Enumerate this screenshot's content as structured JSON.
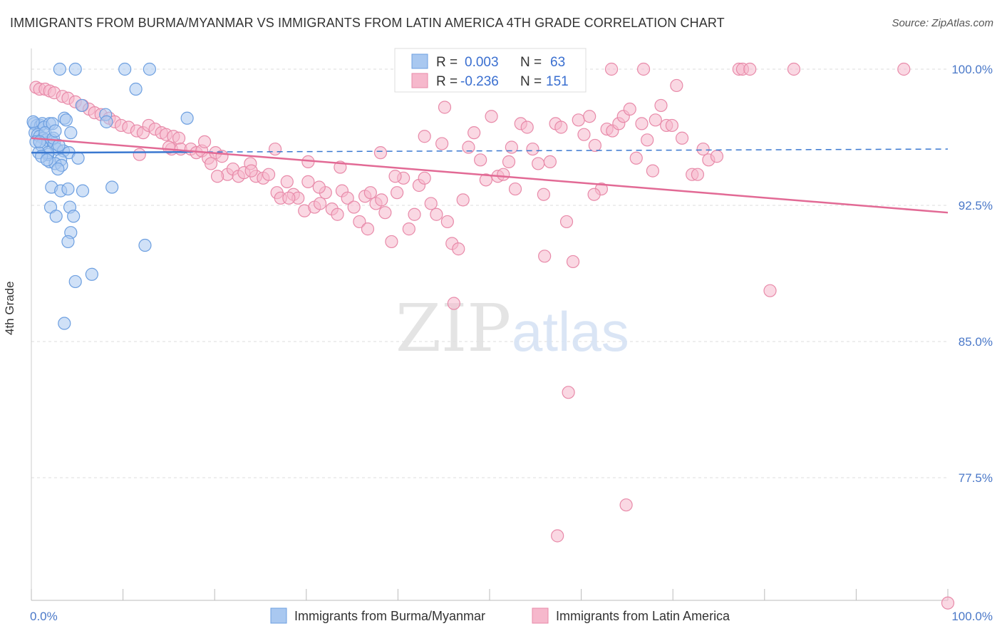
{
  "title": "IMMIGRANTS FROM BURMA/MYANMAR VS IMMIGRANTS FROM LATIN AMERICA 4TH GRADE CORRELATION CHART",
  "source": "Source: ZipAtlas.com",
  "watermark": {
    "zip": "ZIP",
    "atlas": "atlas"
  },
  "colors": {
    "blue_fill": "#a9c8f0",
    "blue_stroke": "#6d9fe0",
    "blue_line": "#3a78d0",
    "pink_fill": "#f6b8cc",
    "pink_stroke": "#e88aa9",
    "pink_line": "#e26a95",
    "tick_text": "#4a78c8",
    "grid": "#dddddd"
  },
  "legend_top": {
    "rows": [
      {
        "r_label": "R =",
        "r_value": "0.003",
        "n_label": "N =",
        "n_value": "63",
        "series": "blue"
      },
      {
        "r_label": "R =",
        "r_value": "-0.236",
        "n_label": "N =",
        "n_value": "151",
        "series": "pink"
      }
    ]
  },
  "chart_data": {
    "type": "scatter",
    "title": "IMMIGRANTS FROM BURMA/MYANMAR VS IMMIGRANTS FROM LATIN AMERICA 4TH GRADE CORRELATION CHART",
    "xlabel": "",
    "ylabel": "4th Grade",
    "xlim": [
      0,
      100
    ],
    "ylim": [
      70.5,
      101
    ],
    "x_ticks": [
      "0.0%",
      "100.0%"
    ],
    "y_ticks": [
      {
        "value": 100.0,
        "label": "100.0%"
      },
      {
        "value": 92.5,
        "label": "92.5%"
      },
      {
        "value": 85.0,
        "label": "85.0%"
      },
      {
        "value": 77.5,
        "label": "77.5%"
      }
    ],
    "grid": true,
    "legend_position": "bottom",
    "series": [
      {
        "name": "Immigrants from Burma/Myanmar",
        "color": "blue",
        "trend": {
          "x0": 0,
          "y0": 95.4,
          "x1": 100,
          "y1": 95.6,
          "solid_until": 17
        },
        "points": [
          [
            3.1,
            100
          ],
          [
            4.8,
            100
          ],
          [
            10.2,
            100
          ],
          [
            12.9,
            100
          ],
          [
            11.4,
            98.9
          ],
          [
            5.5,
            98.0
          ],
          [
            8.1,
            97.5
          ],
          [
            17.0,
            97.3
          ],
          [
            0.3,
            97.0
          ],
          [
            0.6,
            96.9
          ],
          [
            1.0,
            96.9
          ],
          [
            1.2,
            97.0
          ],
          [
            1.4,
            96.8
          ],
          [
            2.0,
            97.0
          ],
          [
            3.6,
            97.3
          ],
          [
            3.8,
            97.2
          ],
          [
            0.4,
            96.5
          ],
          [
            0.7,
            96.4
          ],
          [
            0.9,
            96.3
          ],
          [
            1.3,
            96.2
          ],
          [
            1.6,
            96.1
          ],
          [
            2.2,
            96.1
          ],
          [
            2.5,
            95.9
          ],
          [
            4.3,
            96.5
          ],
          [
            1.1,
            95.8
          ],
          [
            2.8,
            95.6
          ],
          [
            3.5,
            95.5
          ],
          [
            4.1,
            95.4
          ],
          [
            5.1,
            95.1
          ],
          [
            3.2,
            95.0
          ],
          [
            2.0,
            94.9
          ],
          [
            1.8,
            95.3
          ],
          [
            1.8,
            95.4
          ],
          [
            0.8,
            95.4
          ],
          [
            2.6,
            94.8
          ],
          [
            3.3,
            94.7
          ],
          [
            2.9,
            94.5
          ],
          [
            0.5,
            96.0
          ],
          [
            1.5,
            96.5
          ],
          [
            2.3,
            97.0
          ],
          [
            8.2,
            97.1
          ],
          [
            1.1,
            95.2
          ],
          [
            2.2,
            93.5
          ],
          [
            3.2,
            93.3
          ],
          [
            4.0,
            93.4
          ],
          [
            5.6,
            93.3
          ],
          [
            8.8,
            93.5
          ],
          [
            2.1,
            92.4
          ],
          [
            4.2,
            92.4
          ],
          [
            2.7,
            91.9
          ],
          [
            4.6,
            91.9
          ],
          [
            4.3,
            91.0
          ],
          [
            4.0,
            90.5
          ],
          [
            12.4,
            90.3
          ],
          [
            6.6,
            88.7
          ],
          [
            4.8,
            88.3
          ],
          [
            3.6,
            86.0
          ],
          [
            0.2,
            97.1
          ],
          [
            0.9,
            96.0
          ],
          [
            2.4,
            96.2
          ],
          [
            3.0,
            95.8
          ],
          [
            1.7,
            95.0
          ],
          [
            2.6,
            96.6
          ]
        ]
      },
      {
        "name": "Immigrants from Latin America",
        "color": "pink",
        "trend": {
          "x0": 0,
          "y0": 96.2,
          "x1": 100,
          "y1": 92.1
        },
        "points": [
          [
            63.3,
            100
          ],
          [
            66.8,
            100
          ],
          [
            77.2,
            100
          ],
          [
            77.6,
            100
          ],
          [
            78.4,
            100
          ],
          [
            83.2,
            100
          ],
          [
            95.2,
            100
          ],
          [
            70.4,
            99.1
          ],
          [
            0.5,
            99.0
          ],
          [
            0.9,
            98.9
          ],
          [
            1.5,
            98.9
          ],
          [
            2.0,
            98.8
          ],
          [
            2.5,
            98.7
          ],
          [
            3.4,
            98.5
          ],
          [
            4.0,
            98.4
          ],
          [
            4.8,
            98.2
          ],
          [
            5.6,
            98.0
          ],
          [
            6.3,
            97.8
          ],
          [
            6.9,
            97.6
          ],
          [
            7.6,
            97.5
          ],
          [
            8.5,
            97.3
          ],
          [
            9.1,
            97.1
          ],
          [
            9.8,
            96.9
          ],
          [
            10.6,
            96.8
          ],
          [
            11.5,
            96.6
          ],
          [
            12.2,
            96.5
          ],
          [
            12.8,
            96.9
          ],
          [
            13.5,
            96.7
          ],
          [
            14.2,
            96.5
          ],
          [
            14.7,
            96.4
          ],
          [
            15.5,
            96.3
          ],
          [
            16.1,
            96.2
          ],
          [
            15.3,
            95.6
          ],
          [
            15.0,
            95.7
          ],
          [
            16.3,
            95.6
          ],
          [
            17.4,
            95.6
          ],
          [
            18.0,
            95.4
          ],
          [
            18.6,
            95.5
          ],
          [
            19.3,
            95.1
          ],
          [
            20.1,
            95.4
          ],
          [
            20.8,
            95.2
          ],
          [
            19.6,
            94.8
          ],
          [
            21.4,
            94.2
          ],
          [
            22.0,
            94.5
          ],
          [
            22.6,
            94.1
          ],
          [
            23.2,
            94.3
          ],
          [
            23.9,
            94.8
          ],
          [
            24.5,
            94.1
          ],
          [
            25.3,
            94.0
          ],
          [
            25.9,
            94.2
          ],
          [
            26.8,
            93.2
          ],
          [
            27.2,
            92.9
          ],
          [
            27.9,
            93.8
          ],
          [
            28.6,
            93.1
          ],
          [
            29.1,
            92.9
          ],
          [
            29.8,
            92.2
          ],
          [
            30.2,
            93.8
          ],
          [
            30.9,
            92.4
          ],
          [
            31.5,
            92.6
          ],
          [
            32.1,
            93.2
          ],
          [
            32.8,
            92.3
          ],
          [
            33.4,
            92.0
          ],
          [
            33.9,
            93.3
          ],
          [
            34.5,
            92.9
          ],
          [
            35.2,
            92.4
          ],
          [
            35.8,
            91.6
          ],
          [
            36.4,
            93.0
          ],
          [
            37.0,
            93.2
          ],
          [
            37.6,
            92.6
          ],
          [
            38.2,
            92.8
          ],
          [
            38.6,
            92.1
          ],
          [
            39.3,
            90.5
          ],
          [
            39.9,
            93.2
          ],
          [
            40.6,
            94.0
          ],
          [
            41.2,
            91.2
          ],
          [
            41.8,
            92.0
          ],
          [
            42.3,
            93.6
          ],
          [
            42.9,
            94.0
          ],
          [
            43.6,
            92.6
          ],
          [
            44.2,
            92.0
          ],
          [
            44.8,
            95.9
          ],
          [
            45.4,
            91.6
          ],
          [
            45.9,
            90.4
          ],
          [
            46.6,
            90.1
          ],
          [
            47.1,
            92.8
          ],
          [
            47.7,
            95.7
          ],
          [
            48.3,
            96.5
          ],
          [
            49.0,
            95.0
          ],
          [
            49.6,
            93.9
          ],
          [
            50.2,
            97.4
          ],
          [
            50.9,
            94.1
          ],
          [
            51.5,
            94.2
          ],
          [
            52.1,
            94.9
          ],
          [
            52.8,
            93.4
          ],
          [
            53.4,
            97.0
          ],
          [
            54.1,
            96.8
          ],
          [
            54.7,
            95.6
          ],
          [
            55.3,
            94.8
          ],
          [
            56.0,
            89.7
          ],
          [
            56.6,
            94.9
          ],
          [
            57.2,
            97.0
          ],
          [
            57.8,
            96.8
          ],
          [
            58.4,
            91.6
          ],
          [
            59.1,
            89.4
          ],
          [
            59.7,
            97.2
          ],
          [
            60.3,
            96.4
          ],
          [
            60.9,
            97.4
          ],
          [
            61.5,
            95.8
          ],
          [
            62.2,
            93.4
          ],
          [
            62.8,
            96.7
          ],
          [
            63.4,
            96.6
          ],
          [
            64.1,
            97.0
          ],
          [
            64.6,
            97.4
          ],
          [
            65.3,
            97.8
          ],
          [
            66.0,
            95.1
          ],
          [
            66.6,
            97.0
          ],
          [
            67.2,
            96.1
          ],
          [
            67.8,
            94.4
          ],
          [
            68.1,
            97.2
          ],
          [
            68.7,
            98.0
          ],
          [
            69.3,
            96.9
          ],
          [
            69.9,
            96.9
          ],
          [
            71.0,
            96.2
          ],
          [
            72.1,
            94.2
          ],
          [
            72.7,
            94.2
          ],
          [
            73.3,
            95.6
          ],
          [
            73.9,
            95.0
          ],
          [
            74.8,
            95.2
          ],
          [
            80.6,
            87.8
          ],
          [
            58.6,
            82.2
          ],
          [
            64.9,
            76.0
          ],
          [
            57.4,
            74.3
          ],
          [
            100.0,
            70.6
          ],
          [
            46.1,
            87.1
          ],
          [
            36.7,
            91.2
          ],
          [
            39.7,
            94.1
          ],
          [
            42.9,
            96.3
          ],
          [
            31.4,
            93.5
          ],
          [
            28.1,
            92.9
          ],
          [
            24.0,
            94.4
          ],
          [
            11.8,
            95.3
          ],
          [
            18.9,
            96.0
          ],
          [
            26.6,
            95.6
          ],
          [
            30.2,
            94.9
          ],
          [
            52.4,
            95.7
          ],
          [
            45.1,
            97.9
          ],
          [
            38.1,
            95.4
          ],
          [
            20.3,
            94.1
          ],
          [
            55.9,
            93.1
          ],
          [
            61.4,
            93.1
          ],
          [
            33.7,
            94.6
          ]
        ]
      }
    ]
  },
  "legend_bottom": [
    {
      "label": "Immigrants from Burma/Myanmar",
      "series": "blue"
    },
    {
      "label": "Immigrants from Latin America",
      "series": "pink"
    }
  ]
}
